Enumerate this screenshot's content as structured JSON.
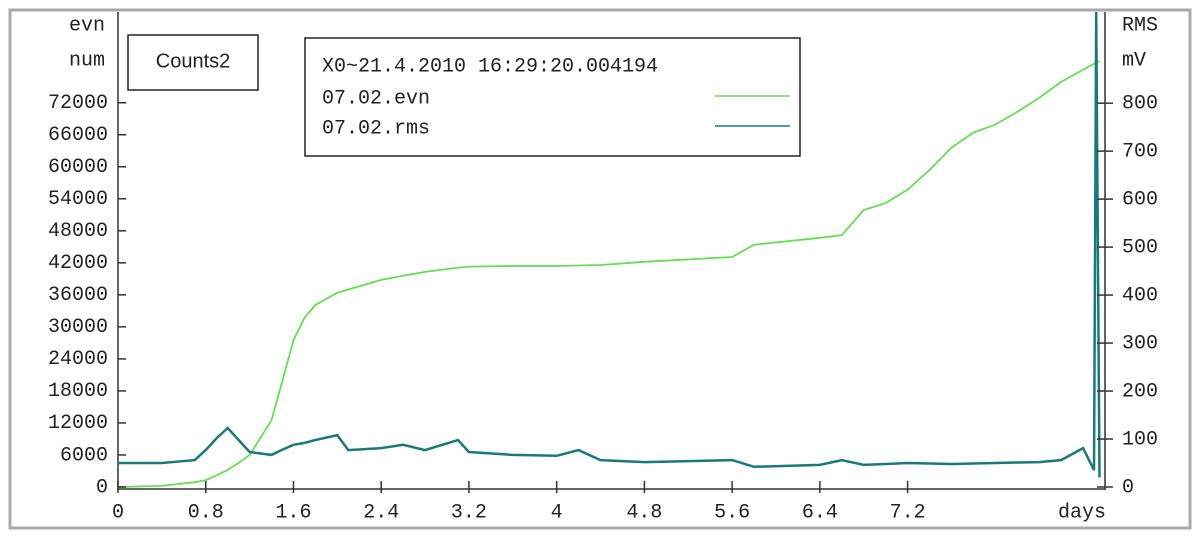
{
  "chart_data": {
    "type": "line",
    "title": "Counts2",
    "legend_title": "X0~21.4.2010 16:29:20.004194",
    "xlabel": "days",
    "ylabel": [
      "evn",
      "num"
    ],
    "y2label": [
      "RMS",
      "mV"
    ],
    "x": [
      0,
      0.4,
      0.7,
      0.8,
      0.9,
      1.0,
      1.1,
      1.2,
      1.4,
      1.5,
      1.6,
      1.7,
      1.8,
      2.0,
      2.1,
      2.4,
      2.6,
      2.8,
      3.1,
      3.2,
      3.6,
      4.0,
      4.2,
      4.4,
      4.8,
      5.6,
      5.8,
      6.4,
      6.6,
      6.8,
      7.0,
      7.2,
      7.4,
      7.6,
      7.8,
      8.0,
      8.2,
      8.4,
      8.6,
      8.8,
      8.9,
      8.92,
      8.95
    ],
    "series": [
      {
        "name": "07.02.evn",
        "color": "#66dd55",
        "axis": "y",
        "values": [
          0,
          200,
          900,
          1300,
          2200,
          3200,
          4500,
          6000,
          12500,
          20000,
          27500,
          31700,
          34100,
          36400,
          37000,
          38800,
          39600,
          40300,
          41100,
          41300,
          41400,
          41400,
          41500,
          41600,
          42200,
          43100,
          45400,
          46700,
          47200,
          51900,
          53200,
          55700,
          59400,
          63600,
          66400,
          67900,
          70300,
          72900,
          75900,
          78200,
          79300,
          79500,
          79800
        ]
      },
      {
        "name": "07.02.rms",
        "color": "#1a7a7a",
        "axis": "y2",
        "values": [
          50,
          50,
          56,
          77,
          102,
          123,
          98,
          73,
          67,
          78,
          88,
          92,
          98,
          108,
          77,
          81,
          88,
          77,
          98,
          73,
          67,
          65,
          77,
          56,
          52,
          56,
          42,
          46,
          56,
          46,
          48,
          50,
          49,
          48,
          49,
          50,
          51,
          52,
          56,
          81,
          35,
          990,
          20
        ]
      }
    ],
    "xlim": [
      0,
      9
    ],
    "xticks": [
      0,
      0.8,
      1.6,
      2.4,
      3.2,
      4,
      4.8,
      5.6,
      6.4,
      7.2
    ],
    "ylim": [
      0,
      89000
    ],
    "yticks": [
      0,
      6000,
      12000,
      18000,
      24000,
      30000,
      36000,
      42000,
      48000,
      54000,
      60000,
      66000,
      72000
    ],
    "y2lim": [
      0,
      990
    ],
    "y2ticks": [
      0,
      100,
      200,
      300,
      400,
      500,
      600,
      700,
      800
    ]
  }
}
